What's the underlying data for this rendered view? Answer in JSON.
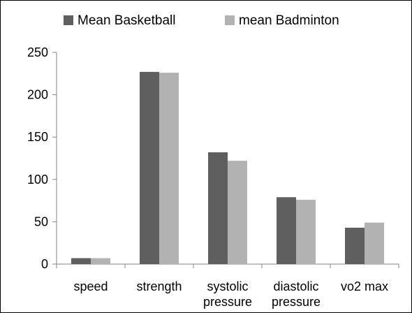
{
  "chart_data": {
    "type": "bar",
    "categories": [
      [
        "speed"
      ],
      [
        "strength"
      ],
      [
        "systolic",
        "pressure"
      ],
      [
        "diastolic",
        "pressure"
      ],
      [
        "vo2 max"
      ]
    ],
    "series": [
      {
        "name": "Mean Basketball",
        "color": "#5f5f5f",
        "values": [
          7,
          227,
          132,
          79,
          43
        ]
      },
      {
        "name": "mean Badminton",
        "color": "#b2b2b2",
        "values": [
          7,
          226,
          122,
          76,
          49
        ]
      }
    ],
    "ylim": [
      0,
      250
    ],
    "yticks": [
      0,
      50,
      100,
      150,
      200,
      250
    ],
    "grid": false,
    "legend_position": "top",
    "title": "",
    "xlabel": "",
    "ylabel": ""
  }
}
